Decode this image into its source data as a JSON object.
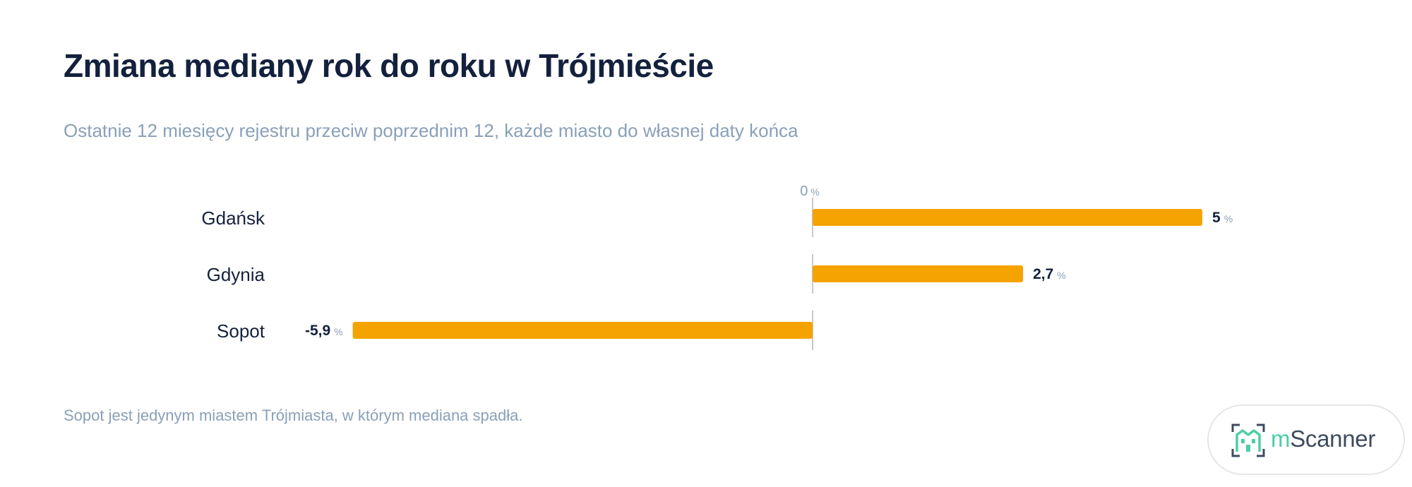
{
  "title": "Zmiana mediany rok do roku w Trójmieście",
  "subtitle": "Ostatnie 12 miesięcy rejestru przeciw poprzednim 12, każde miasto do własnej daty końca",
  "footnote": "Sopot jest jedynym miastem Trójmiasta, w którym mediana spadła.",
  "brand": {
    "logo_prefix": "m",
    "logo_rest": "Scanner",
    "accent": "#4ccfa3",
    "text_color": "#3d4b5c",
    "icon": "building-bracket-icon"
  },
  "colors": {
    "bar": "#f5a300",
    "text": "#14213d",
    "muted": "#8aa0b8",
    "axis": "#c8c8c8"
  },
  "chart_data": {
    "type": "bar",
    "orientation": "horizontal",
    "categories": [
      "Gdańsk",
      "Gdynia",
      "Sopot"
    ],
    "values": [
      5,
      2.7,
      -5.9
    ],
    "value_labels": [
      "5",
      "2,7",
      "-5,9"
    ],
    "unit": "%",
    "zero_label": "0",
    "xlim": [
      -5.9,
      5
    ],
    "grid": false,
    "legend": "none"
  }
}
